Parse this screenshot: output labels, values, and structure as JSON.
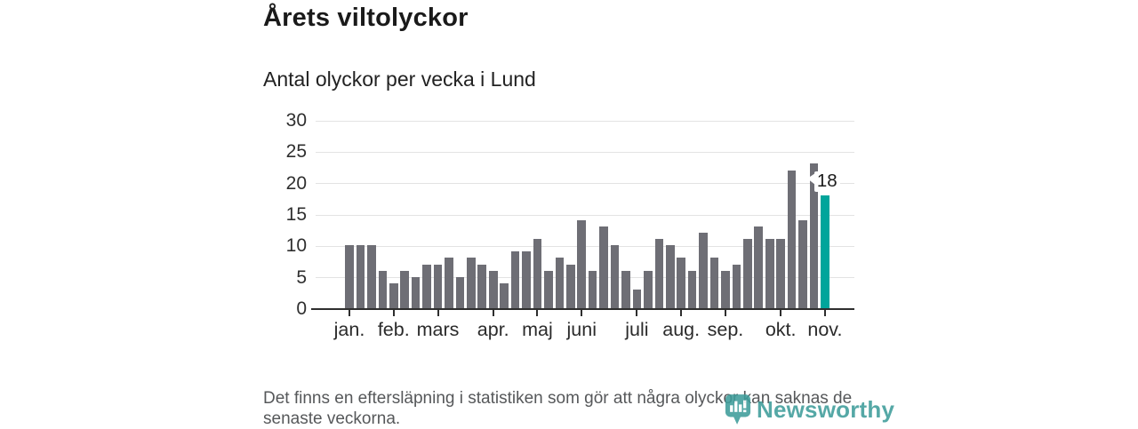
{
  "header": {
    "title": "Årets viltolyckor",
    "subtitle": "Antal olyckor per vecka i Lund"
  },
  "chart_data": {
    "type": "bar",
    "title": "Årets viltolyckor",
    "subtitle": "Antal olyckor per vecka i Lund",
    "x_unit": "vecka (week number 1-44)",
    "values": [
      10,
      10,
      10,
      6,
      4,
      6,
      5,
      7,
      7,
      8,
      5,
      8,
      7,
      6,
      4,
      9,
      9,
      11,
      6,
      8,
      7,
      14,
      6,
      13,
      10,
      6,
      3,
      6,
      11,
      10,
      8,
      6,
      12,
      8,
      6,
      7,
      11,
      13,
      11,
      11,
      22,
      14,
      23,
      18
    ],
    "ylim": [
      0,
      30
    ],
    "yticks": [
      0,
      5,
      10,
      15,
      20,
      25,
      30
    ],
    "grid": "horizontal",
    "legend": "none",
    "months": [
      {
        "label": "jan.",
        "week_index": 0
      },
      {
        "label": "feb.",
        "week_index": 4
      },
      {
        "label": "mars",
        "week_index": 8
      },
      {
        "label": "apr.",
        "week_index": 13
      },
      {
        "label": "maj",
        "week_index": 17
      },
      {
        "label": "juni",
        "week_index": 21
      },
      {
        "label": "juli",
        "week_index": 26
      },
      {
        "label": "aug.",
        "week_index": 30
      },
      {
        "label": "sep.",
        "week_index": 34
      },
      {
        "label": "okt.",
        "week_index": 39
      },
      {
        "label": "nov.",
        "week_index": 43
      }
    ],
    "highlight_index": 43,
    "highlight_label": "18",
    "bar_color": "#6E6E75",
    "highlight_color": "#00A59B"
  },
  "footer": {
    "line1": "Det finns en eftersläpning i statistiken som gör att några olyckor kan saknas de",
    "line2": "senaste veckorna."
  },
  "logo": {
    "text": "Newsworthy",
    "icon": "newsworthy-bubble-barchart-icon",
    "color": "#3E9D9A"
  },
  "colors": {
    "background": "#FFFFFF",
    "title_text": "#1A1A1A",
    "axis_text": "#2F2F2F",
    "gridline": "#E3E3E3",
    "axis_line": "#2E2E2E",
    "bar": "#6E6E75",
    "highlight": "#00A59B",
    "footer_text": "#56585A",
    "logo": "#3E9D9A"
  }
}
